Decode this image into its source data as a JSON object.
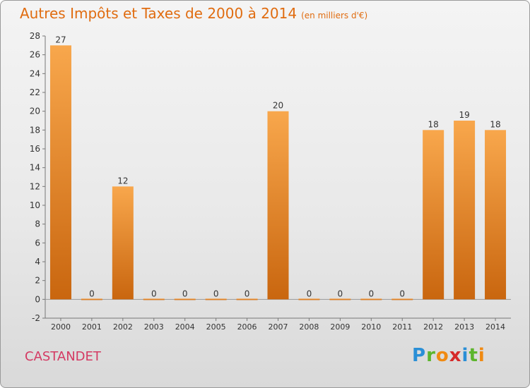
{
  "header": {
    "title": "Autres Impôts et Taxes de 2000 à 2014",
    "unit": "(en milliers d'€)"
  },
  "commune": "CASTANDET",
  "logo": {
    "letters": [
      "P",
      "r",
      "o",
      "x",
      "i",
      "t",
      "i"
    ],
    "colors": [
      "#2a8fd6",
      "#5cb52c",
      "#f08a12",
      "#d62a2a",
      "#2a8fd6",
      "#5cb52c",
      "#f08a12"
    ]
  },
  "colors": {
    "bar_light": "#f8a74c",
    "bar_dark": "#c9660f",
    "title": "#e06c10",
    "commune": "#d43a63"
  },
  "chart_data": {
    "type": "bar",
    "title": "Autres Impôts et Taxes de 2000 à 2014",
    "subtitle": "(en milliers d'€)",
    "categories": [
      "2000",
      "2001",
      "2002",
      "2003",
      "2004",
      "2005",
      "2006",
      "2007",
      "2008",
      "2009",
      "2010",
      "2011",
      "2012",
      "2013",
      "2014"
    ],
    "values": [
      27,
      0,
      12,
      0,
      0,
      0,
      0,
      20,
      0,
      0,
      0,
      0,
      18,
      19,
      18
    ],
    "ylim": [
      -2,
      28
    ],
    "yticks": [
      -2,
      0,
      2,
      4,
      6,
      8,
      10,
      12,
      14,
      16,
      18,
      20,
      22,
      24,
      26,
      28
    ],
    "grid": false,
    "data_labels": true
  }
}
